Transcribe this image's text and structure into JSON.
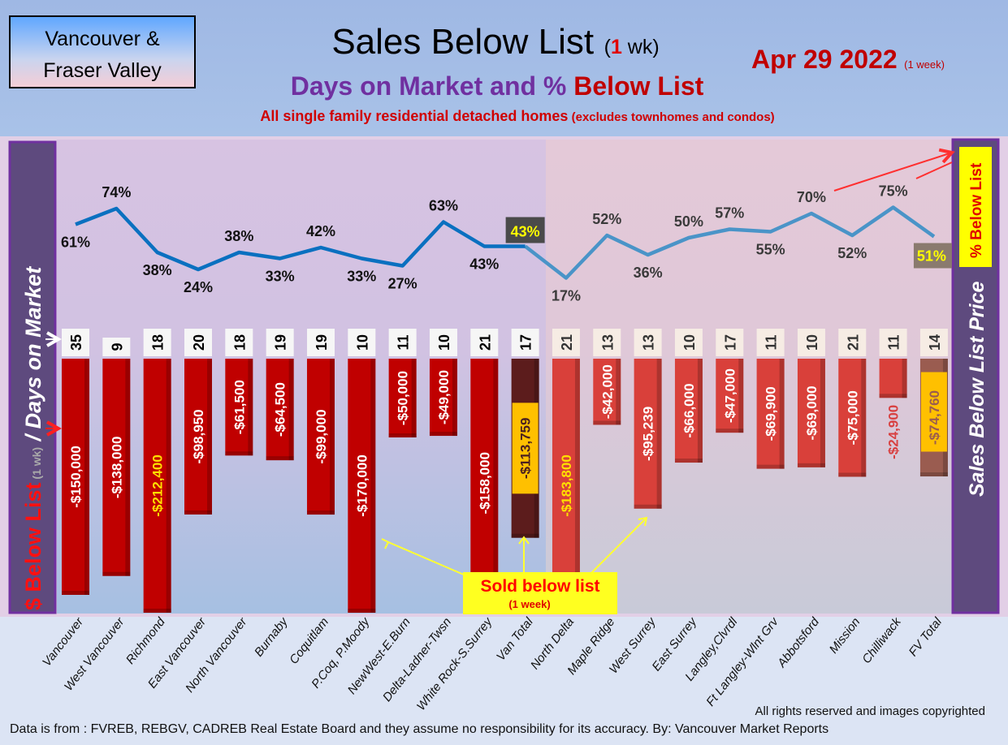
{
  "header": {
    "region_line1": "Vancouver &",
    "region_line2": "Fraser Valley",
    "title_main": "Sales Below List",
    "title_paren_open": "(",
    "title_paren_num": "1",
    "title_paren_rest": " wk)",
    "date": "Apr 29  2022",
    "date_note": "(1 week)",
    "subtitle_part1": "Days on Market and % ",
    "subtitle_part2": "Below List",
    "description": "All single family residential detached homes",
    "description_note": " (excludes townhomes and condos)"
  },
  "left_axis": {
    "part1": "$ Below List",
    "part2": " (1 wk)",
    "part3": " / Days on Market"
  },
  "right_axis": {
    "pct_label": "% Below List",
    "sales_label": "Sales Below List Price"
  },
  "annotation": {
    "line1": "Sold below list",
    "line2": "(1 week)"
  },
  "footer": {
    "copyright": "All rights reserved and  images copyrighted",
    "source": "Data is from : FVREB, REBGV, CADREB Real Estate Board and they assume no responsibility for its accuracy. By: Vancouver Market Reports"
  },
  "colors": {
    "van_bar": "#c00000",
    "van_total_bar": "#5c1c1c",
    "fv_bar": "#d9403a",
    "fv_total_bar": "#9a5c50",
    "van_line": "#0a70c0",
    "fv_line": "#4a94c8",
    "total_label_box": "#ffc000",
    "highlight": "#ffff00"
  },
  "chart_data": {
    "type": "bar+line",
    "categories": [
      "Vancouver",
      "West Vancouver",
      "Richmond",
      "East Vancouver",
      "North Vancouver",
      "Burnaby",
      "Coquitlam",
      "P.Coq, P.Moody",
      "NewWest-E.Burn",
      "Delta-Ladner-Twsn",
      "White Rock-S.Surrey",
      "Van Total",
      "North Delta",
      "Maple Ridge",
      "West Surrey",
      "East Surrey",
      "Langley,Clvrdl",
      "Ft Langley-Wlnt Grv",
      "Abbotsford",
      "Mission",
      "Chilliwack",
      "FV Total"
    ],
    "groups": [
      "Vancouver",
      "Vancouver",
      "Vancouver",
      "Vancouver",
      "Vancouver",
      "Vancouver",
      "Vancouver",
      "Vancouver",
      "Vancouver",
      "Vancouver",
      "Vancouver",
      "Vancouver total",
      "Fraser Valley",
      "Fraser Valley",
      "Fraser Valley",
      "Fraser Valley",
      "Fraser Valley",
      "Fraser Valley",
      "Fraser Valley",
      "Fraser Valley",
      "Fraser Valley",
      "Fraser Valley total"
    ],
    "series": [
      {
        "name": "$ Below List (1 wk)",
        "type": "bar",
        "values": [
          -150000,
          -138000,
          -212400,
          -98950,
          -61500,
          -64500,
          -99000,
          -170000,
          -50000,
          -49000,
          -158000,
          -113759,
          -183800,
          -42000,
          -95239,
          -66000,
          -47000,
          -69900,
          -69000,
          -75000,
          -24900,
          -74760
        ]
      },
      {
        "name": "Days on Market",
        "type": "label",
        "values": [
          35,
          9,
          18,
          20,
          18,
          19,
          19,
          10,
          11,
          10,
          21,
          17,
          21,
          13,
          13,
          10,
          17,
          11,
          10,
          21,
          11,
          14
        ]
      },
      {
        "name": "% Below List",
        "type": "line",
        "values": [
          61,
          74,
          38,
          24,
          38,
          33,
          42,
          33,
          27,
          63,
          43,
          43,
          17,
          52,
          36,
          50,
          57,
          55,
          70,
          52,
          75,
          51
        ]
      }
    ],
    "grid": false
  }
}
